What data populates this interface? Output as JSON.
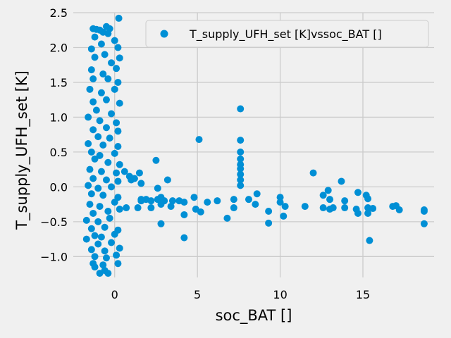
{
  "chart_data": {
    "type": "scatter",
    "xlabel": "soc_BAT []",
    "ylabel": "T_supply_UFH_set [K]",
    "xlim": [
      -2.5,
      19.3
    ],
    "ylim": [
      -1.3,
      2.5
    ],
    "xticks": [
      0,
      5,
      10,
      15
    ],
    "xtick_labels": [
      "0",
      "5",
      "10",
      "15"
    ],
    "yticks": [
      -1.0,
      -0.5,
      0.0,
      0.5,
      1.0,
      1.5,
      2.0,
      2.5
    ],
    "ytick_labels": [
      "−1.0",
      "−0.5",
      "0.0",
      "0.5",
      "1.0",
      "1.5",
      "2.0",
      "2.5"
    ],
    "grid": true,
    "legend_position": "top-right",
    "color": "#008fd5",
    "series": [
      {
        "name": "T_supply_UFH_set [K]vssoc_BAT []",
        "points": [
          [
            -1.3,
            2.27
          ],
          [
            -1.1,
            2.26
          ],
          [
            -0.9,
            2.25
          ],
          [
            -0.7,
            2.22
          ],
          [
            -0.5,
            2.3
          ],
          [
            -0.3,
            2.27
          ],
          [
            0.25,
            2.42
          ],
          [
            -1.2,
            2.15
          ],
          [
            -0.8,
            2.05
          ],
          [
            -0.4,
            2.2
          ],
          [
            0.0,
            2.1
          ],
          [
            0.2,
            2.0
          ],
          [
            -1.4,
            1.98
          ],
          [
            -0.6,
            1.9
          ],
          [
            0.3,
            1.85
          ],
          [
            -1.2,
            1.86
          ],
          [
            -0.2,
            1.78
          ],
          [
            -1.4,
            1.68
          ],
          [
            -0.7,
            1.62
          ],
          [
            0.1,
            1.7
          ],
          [
            -1.3,
            1.55
          ],
          [
            -0.4,
            1.55
          ],
          [
            0.2,
            1.5
          ],
          [
            -1.5,
            1.4
          ],
          [
            -0.8,
            1.35
          ],
          [
            0.0,
            1.4
          ],
          [
            -1.3,
            1.22
          ],
          [
            -0.5,
            1.25
          ],
          [
            0.3,
            1.2
          ],
          [
            -1.1,
            1.1
          ],
          [
            -0.2,
            1.05
          ],
          [
            -1.6,
            1.0
          ],
          [
            -0.9,
            0.95
          ],
          [
            0.1,
            0.92
          ],
          [
            -1.3,
            0.82
          ],
          [
            -0.5,
            0.85
          ],
          [
            0.2,
            0.8
          ],
          [
            -1.0,
            0.72
          ],
          [
            -0.3,
            0.7
          ],
          [
            -1.6,
            0.62
          ],
          [
            -0.7,
            0.6
          ],
          [
            0.2,
            0.58
          ],
          [
            -1.4,
            0.5
          ],
          [
            -0.9,
            0.45
          ],
          [
            0.0,
            0.48
          ],
          [
            -1.2,
            0.4
          ],
          [
            -0.4,
            0.35
          ],
          [
            0.3,
            0.32
          ],
          [
            -1.5,
            0.25
          ],
          [
            -0.8,
            0.22
          ],
          [
            0.1,
            0.2
          ],
          [
            -1.3,
            0.12
          ],
          [
            -0.5,
            0.1
          ],
          [
            0.2,
            0.08
          ],
          [
            -1.6,
            0.02
          ],
          [
            -1.0,
            -0.02
          ],
          [
            -0.2,
            0.0
          ],
          [
            -1.4,
            -0.1
          ],
          [
            -0.7,
            -0.12
          ],
          [
            0.2,
            -0.15
          ],
          [
            -1.5,
            -0.25
          ],
          [
            -0.9,
            -0.28
          ],
          [
            0.0,
            -0.22
          ],
          [
            -1.3,
            -0.38
          ],
          [
            -0.4,
            -0.35
          ],
          [
            0.3,
            -0.32
          ],
          [
            -1.7,
            -0.48
          ],
          [
            -1.0,
            -0.5
          ],
          [
            -0.3,
            -0.45
          ],
          [
            -1.4,
            -0.6
          ],
          [
            -0.6,
            -0.58
          ],
          [
            0.2,
            -0.62
          ],
          [
            -1.2,
            -0.7
          ],
          [
            -0.8,
            -0.72
          ],
          [
            0.0,
            -0.68
          ],
          [
            -1.7,
            -0.75
          ],
          [
            -1.0,
            -0.82
          ],
          [
            -0.2,
            -0.8
          ],
          [
            -1.4,
            -0.9
          ],
          [
            -0.6,
            -0.92
          ],
          [
            0.3,
            -0.88
          ],
          [
            -1.2,
            -1.0
          ],
          [
            -0.5,
            -1.02
          ],
          [
            0.1,
            -0.98
          ],
          [
            -1.3,
            -1.1
          ],
          [
            -0.7,
            -1.12
          ],
          [
            0.2,
            -1.1
          ],
          [
            -1.2,
            -1.15
          ],
          [
            -0.6,
            -1.2
          ],
          [
            -0.9,
            -1.24
          ],
          [
            -0.4,
            -1.24
          ],
          [
            0.6,
            0.22
          ],
          [
            0.9,
            0.15
          ],
          [
            1.0,
            0.1
          ],
          [
            1.2,
            0.12
          ],
          [
            1.5,
            0.2
          ],
          [
            2.5,
            0.38
          ],
          [
            3.2,
            0.1
          ],
          [
            1.6,
            0.05
          ],
          [
            2.6,
            -0.02
          ],
          [
            0.7,
            -0.3
          ],
          [
            1.4,
            -0.3
          ],
          [
            1.6,
            -0.2
          ],
          [
            1.9,
            -0.18
          ],
          [
            2.2,
            -0.2
          ],
          [
            2.2,
            -0.3
          ],
          [
            2.8,
            -0.25
          ],
          [
            3.0,
            -0.2
          ],
          [
            3.5,
            -0.2
          ],
          [
            4.2,
            -0.22
          ],
          [
            4.8,
            -0.15
          ],
          [
            2.6,
            -0.18
          ],
          [
            1.6,
            -0.18
          ],
          [
            2.8,
            -0.15
          ],
          [
            3.4,
            -0.28
          ],
          [
            3.9,
            -0.2
          ],
          [
            4.9,
            -0.32
          ],
          [
            5.2,
            -0.36
          ],
          [
            5.6,
            -0.22
          ],
          [
            6.2,
            -0.2
          ],
          [
            7.2,
            -0.18
          ],
          [
            7.2,
            -0.3
          ],
          [
            6.8,
            -0.45
          ],
          [
            2.8,
            -0.53
          ],
          [
            4.2,
            -0.4
          ],
          [
            4.2,
            -0.73
          ],
          [
            5.1,
            0.68
          ],
          [
            7.6,
            1.12
          ],
          [
            7.6,
            0.67
          ],
          [
            7.6,
            0.5
          ],
          [
            7.6,
            0.4
          ],
          [
            7.6,
            0.32
          ],
          [
            7.6,
            0.26
          ],
          [
            7.6,
            0.18
          ],
          [
            7.6,
            0.1
          ],
          [
            7.6,
            0.02
          ],
          [
            8.1,
            -0.18
          ],
          [
            8.5,
            -0.25
          ],
          [
            8.6,
            -0.1
          ],
          [
            9.3,
            -0.35
          ],
          [
            9.3,
            -0.52
          ],
          [
            10.0,
            -0.15
          ],
          [
            10.0,
            -0.22
          ],
          [
            10.3,
            -0.28
          ],
          [
            10.2,
            -0.42
          ],
          [
            11.5,
            -0.28
          ],
          [
            12.0,
            0.2
          ],
          [
            12.6,
            -0.12
          ],
          [
            12.6,
            -0.3
          ],
          [
            12.9,
            -0.05
          ],
          [
            13.0,
            -0.18
          ],
          [
            13.0,
            -0.32
          ],
          [
            13.2,
            -0.3
          ],
          [
            13.7,
            0.08
          ],
          [
            13.9,
            -0.2
          ],
          [
            13.9,
            -0.3
          ],
          [
            14.6,
            -0.32
          ],
          [
            14.7,
            -0.38
          ],
          [
            14.7,
            -0.08
          ],
          [
            15.2,
            -0.12
          ],
          [
            15.3,
            -0.17
          ],
          [
            15.3,
            -0.3
          ],
          [
            15.3,
            -0.38
          ],
          [
            15.6,
            -0.31
          ],
          [
            15.4,
            -0.77
          ],
          [
            16.8,
            -0.28
          ],
          [
            17.0,
            -0.27
          ],
          [
            17.2,
            -0.33
          ],
          [
            18.7,
            -0.33
          ],
          [
            18.7,
            -0.35
          ],
          [
            18.7,
            -0.53
          ]
        ]
      }
    ]
  }
}
